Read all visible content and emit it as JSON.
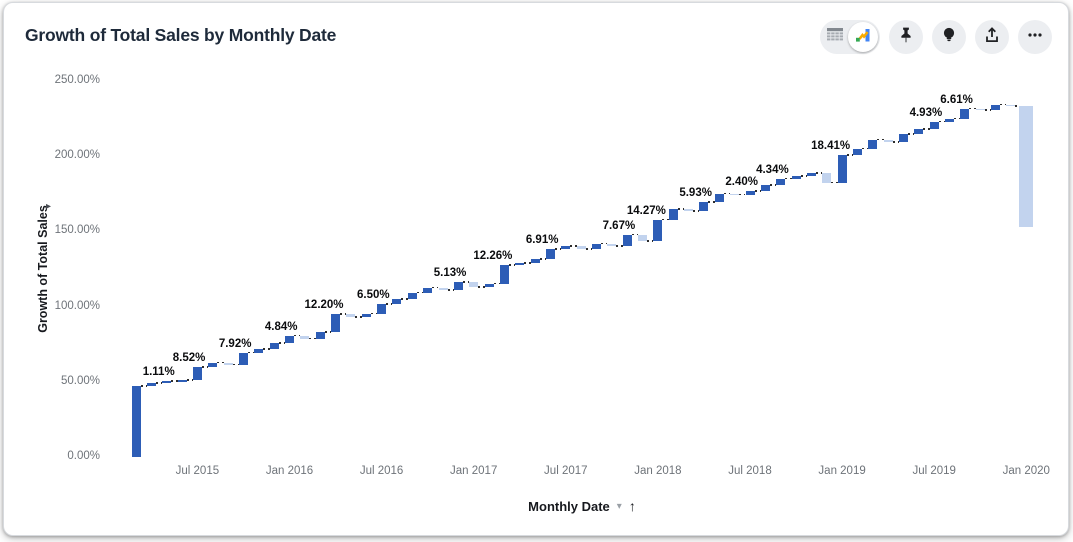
{
  "card": {
    "title": "Growth of Total Sales by Monthly Date"
  },
  "toolbar": {
    "view_toggle": {
      "options": [
        "table-view",
        "chart-view"
      ],
      "selected": "chart-view"
    },
    "buttons": [
      "pin",
      "explore",
      "share",
      "more"
    ]
  },
  "icons": {
    "axis_expand_arrow": "▸",
    "dropdown_caret": "▾",
    "sort_arrow": "↑"
  },
  "chart_data": {
    "type": "bar",
    "subtype": "waterfall",
    "title": "Growth of Total Sales by Monthly Date",
    "xlabel": "Monthly Date",
    "ylabel": "Growth of Total Sales",
    "ylim": [
      0,
      250
    ],
    "grid": false,
    "legend": false,
    "value_format": "percent",
    "colors": {
      "increase": "#2d5db6",
      "decrease": "#c2d3ee"
    },
    "y_ticks": [
      {
        "label": "0.00%",
        "value": 0
      },
      {
        "label": "50.00%",
        "value": 50
      },
      {
        "label": "100.00%",
        "value": 100
      },
      {
        "label": "150.00%",
        "value": 150
      },
      {
        "label": "200.00%",
        "value": 200
      },
      {
        "label": "250.00%",
        "value": 250
      }
    ],
    "x_ticks": [
      {
        "label": "Jul 2015",
        "month_index": 4
      },
      {
        "label": "Jan 2016",
        "month_index": 10
      },
      {
        "label": "Jul 2016",
        "month_index": 16
      },
      {
        "label": "Jan 2017",
        "month_index": 22
      },
      {
        "label": "Jul 2017",
        "month_index": 28
      },
      {
        "label": "Jan 2018",
        "month_index": 34
      },
      {
        "label": "Jul 2018",
        "month_index": 40
      },
      {
        "label": "Jan 2019",
        "month_index": 46
      },
      {
        "label": "Jul 2019",
        "month_index": 52
      },
      {
        "label": "Jan 2020",
        "month_index": 58
      }
    ],
    "bars": [
      {
        "month": "Mar 2015",
        "delta": 47.2,
        "label": null
      },
      {
        "month": "Apr 2015",
        "delta": 1.9,
        "label": null
      },
      {
        "month": "May 2015",
        "delta": 1.11,
        "label": "1.11%"
      },
      {
        "month": "Jun 2015",
        "delta": 0.8,
        "label": null
      },
      {
        "month": "Jul 2015",
        "delta": 8.52,
        "label": "8.52%"
      },
      {
        "month": "Aug 2015",
        "delta": 3.2,
        "label": null
      },
      {
        "month": "Sep 2015",
        "delta": -1.3,
        "label": null
      },
      {
        "month": "Oct 2015",
        "delta": 7.92,
        "label": "7.92%"
      },
      {
        "month": "Nov 2015",
        "delta": 2.4,
        "label": null
      },
      {
        "month": "Dec 2015",
        "delta": 3.9,
        "label": null
      },
      {
        "month": "Jan 2016",
        "delta": 4.84,
        "label": "4.84%"
      },
      {
        "month": "Feb 2016",
        "delta": -1.8,
        "label": null
      },
      {
        "month": "Mar 2016",
        "delta": 4.1,
        "label": null
      },
      {
        "month": "Apr 2016",
        "delta": 12.2,
        "label": "12.20%"
      },
      {
        "month": "May 2016",
        "delta": -2.0,
        "label": null
      },
      {
        "month": "Jun 2016",
        "delta": 2.2,
        "label": null
      },
      {
        "month": "Jul 2016",
        "delta": 6.5,
        "label": "6.50%"
      },
      {
        "month": "Aug 2016",
        "delta": 3.3,
        "label": null
      },
      {
        "month": "Sep 2016",
        "delta": 4.1,
        "label": null
      },
      {
        "month": "Oct 2016",
        "delta": 3.4,
        "label": null
      },
      {
        "month": "Nov 2016",
        "delta": -1.5,
        "label": null
      },
      {
        "month": "Dec 2016",
        "delta": 5.13,
        "label": "5.13%"
      },
      {
        "month": "Jan 2017",
        "delta": -3.4,
        "label": null
      },
      {
        "month": "Feb 2017",
        "delta": 2.5,
        "label": null
      },
      {
        "month": "Mar 2017",
        "delta": 12.26,
        "label": "12.26%"
      },
      {
        "month": "Apr 2017",
        "delta": 1.2,
        "label": null
      },
      {
        "month": "May 2017",
        "delta": 2.7,
        "label": null
      },
      {
        "month": "Jun 2017",
        "delta": 6.91,
        "label": "6.91%"
      },
      {
        "month": "Jul 2017",
        "delta": 2.0,
        "label": null
      },
      {
        "month": "Aug 2017",
        "delta": -2.1,
        "label": null
      },
      {
        "month": "Sep 2017",
        "delta": 3.5,
        "label": null
      },
      {
        "month": "Oct 2017",
        "delta": -1.6,
        "label": null
      },
      {
        "month": "Nov 2017",
        "delta": 7.67,
        "label": "7.67%"
      },
      {
        "month": "Dec 2017",
        "delta": -4.2,
        "label": null
      },
      {
        "month": "Jan 2018",
        "delta": 14.27,
        "label": "14.27%"
      },
      {
        "month": "Feb 2018",
        "delta": 6.8,
        "label": null
      },
      {
        "month": "Mar 2018",
        "delta": -1.2,
        "label": null
      },
      {
        "month": "Apr 2018",
        "delta": 5.93,
        "label": "5.93%"
      },
      {
        "month": "May 2018",
        "delta": 5.7,
        "label": null
      },
      {
        "month": "Jun 2018",
        "delta": -0.6,
        "label": null
      },
      {
        "month": "Jul 2018",
        "delta": 2.4,
        "label": "2.40%"
      },
      {
        "month": "Aug 2018",
        "delta": 3.9,
        "label": null
      },
      {
        "month": "Sep 2018",
        "delta": 4.34,
        "label": "4.34%"
      },
      {
        "month": "Oct 2018",
        "delta": 1.5,
        "label": null
      },
      {
        "month": "Nov 2018",
        "delta": 2.2,
        "label": null
      },
      {
        "month": "Dec 2018",
        "delta": -6.5,
        "label": null
      },
      {
        "month": "Jan 2019",
        "delta": 18.41,
        "label": "18.41%"
      },
      {
        "month": "Feb 2019",
        "delta": 4.3,
        "label": null
      },
      {
        "month": "Mar 2019",
        "delta": 5.8,
        "label": null
      },
      {
        "month": "Apr 2019",
        "delta": -1.5,
        "label": null
      },
      {
        "month": "May 2019",
        "delta": 5.4,
        "label": null
      },
      {
        "month": "Jun 2019",
        "delta": 3.2,
        "label": null
      },
      {
        "month": "Jul 2019",
        "delta": 4.93,
        "label": "4.93%"
      },
      {
        "month": "Aug 2019",
        "delta": 2.1,
        "label": null
      },
      {
        "month": "Sep 2019",
        "delta": 6.61,
        "label": "6.61%"
      },
      {
        "month": "Oct 2019",
        "delta": -0.9,
        "label": null
      },
      {
        "month": "Nov 2019",
        "delta": 3.6,
        "label": null
      },
      {
        "month": "Dec 2019",
        "delta": -1.2,
        "label": null
      },
      {
        "month": "Jan 2020",
        "delta": -80.0,
        "label": null
      }
    ]
  }
}
